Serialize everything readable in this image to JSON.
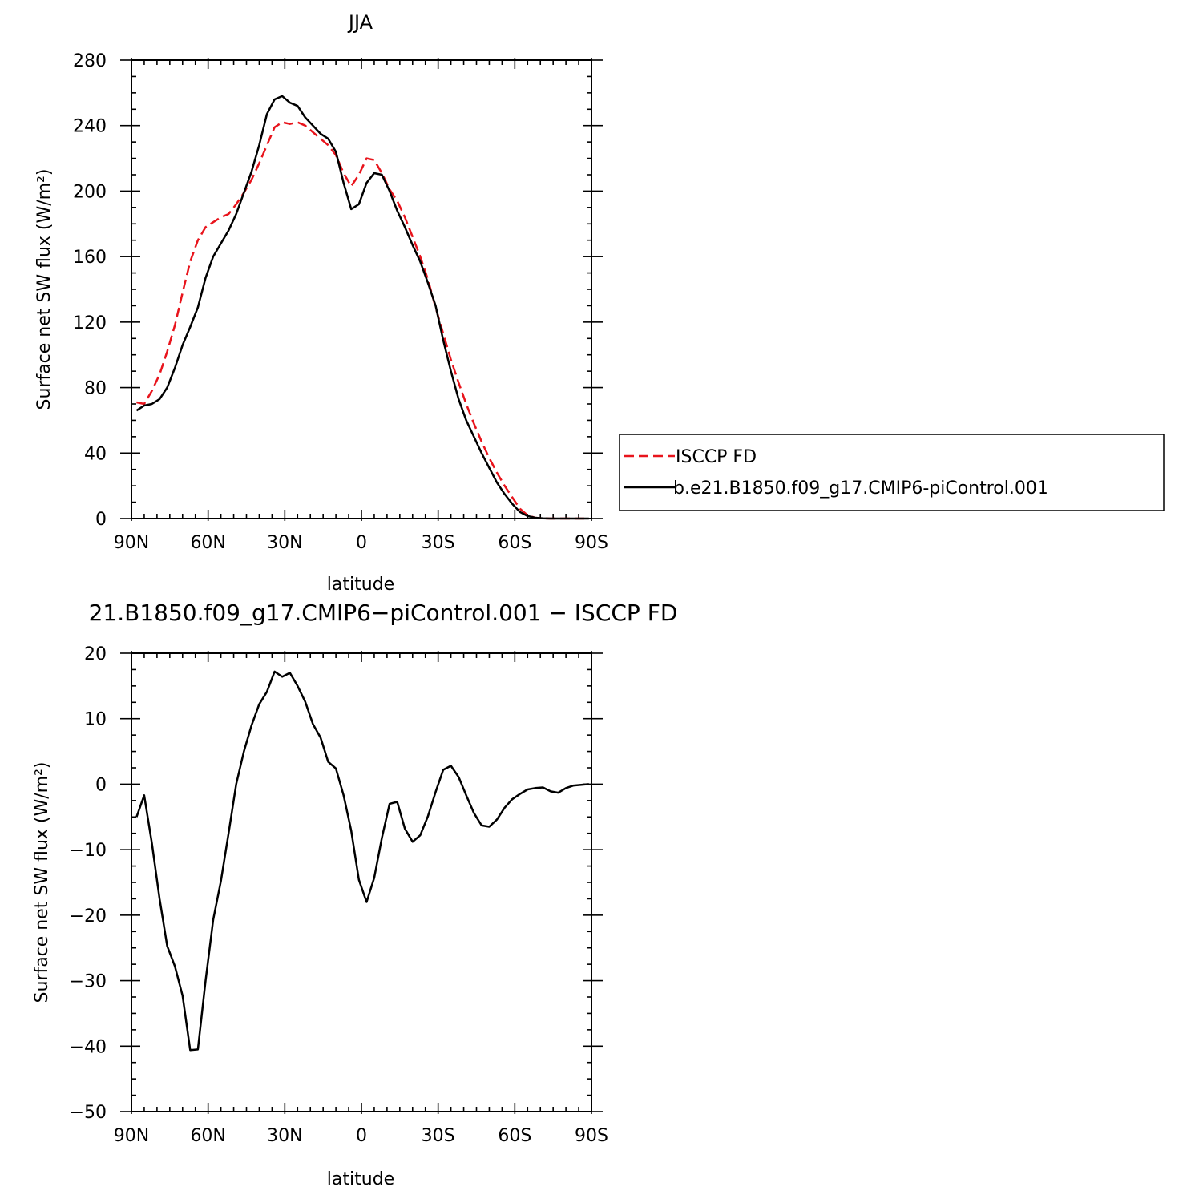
{
  "chart_data": [
    {
      "type": "line",
      "title": "JJA",
      "xlabel": "latitude",
      "ylabel": "Surface net SW flux (W/m²)",
      "xlim": [
        90,
        -90
      ],
      "ylim": [
        0,
        280
      ],
      "x_ticks": [
        90,
        60,
        30,
        0,
        -30,
        -60,
        -90
      ],
      "x_tick_labels": [
        "90N",
        "60N",
        "30N",
        "0",
        "30S",
        "60S",
        "90S"
      ],
      "y_ticks": [
        0,
        40,
        80,
        120,
        160,
        200,
        240,
        280
      ],
      "y_tick_labels": [
        "0",
        "40",
        "80",
        "120",
        "160",
        "200",
        "240",
        "280"
      ],
      "legend_position": "right",
      "series": [
        {
          "name": "ISCCP FD",
          "color": "#e8141c",
          "dash": "dashed",
          "x": [
            88,
            85,
            82,
            79,
            76,
            73,
            70,
            67,
            64,
            61,
            58,
            55,
            52,
            49,
            46,
            43,
            40,
            37,
            34,
            31,
            28,
            25,
            22,
            19,
            16,
            13,
            10,
            7,
            4,
            1,
            -2,
            -5,
            -8,
            -11,
            -14,
            -17,
            -20,
            -23,
            -26,
            -29,
            -32,
            -35,
            -38,
            -41,
            -44,
            -47,
            -50,
            -53,
            -56,
            -59,
            -62,
            -65,
            -68,
            -71,
            -74,
            -77,
            -80,
            -83,
            -86,
            -89
          ],
          "y": [
            71,
            70,
            78,
            88,
            102,
            118,
            138,
            157,
            170,
            178,
            181,
            184,
            186,
            192,
            199,
            207,
            217,
            228,
            239,
            242,
            241,
            242,
            240,
            236,
            232,
            228,
            222,
            211,
            203,
            210,
            220,
            219,
            211,
            201,
            194,
            184,
            172,
            160,
            146,
            129,
            113,
            97,
            83,
            70,
            58,
            47,
            37,
            28,
            20,
            13,
            6,
            2,
            0.5,
            0.1,
            0,
            0,
            0,
            0,
            0,
            0
          ]
        },
        {
          "name": "b.e21.B1850.f09_g17.CMIP6-piControl.001",
          "color": "#000000",
          "dash": "solid",
          "x": [
            88,
            85,
            82,
            79,
            76,
            73,
            70,
            67,
            64,
            61,
            58,
            55,
            52,
            49,
            46,
            43,
            40,
            37,
            34,
            31,
            28,
            25,
            22,
            19,
            16,
            13,
            10,
            7,
            4,
            1,
            -2,
            -5,
            -8,
            -11,
            -14,
            -17,
            -20,
            -23,
            -26,
            -29,
            -32,
            -35,
            -38,
            -41,
            -44,
            -47,
            -50,
            -53,
            -56,
            -59,
            -62,
            -65,
            -68,
            -71,
            -74,
            -77,
            -80,
            -83,
            -86,
            -89
          ],
          "y": [
            66,
            69,
            70,
            73,
            80,
            92,
            106,
            117,
            129,
            147,
            160,
            168,
            176,
            186,
            199,
            212,
            228,
            247,
            256,
            258,
            254,
            252,
            245,
            240,
            235,
            232,
            224,
            205,
            189,
            192,
            205,
            211,
            210,
            200,
            188,
            178,
            167,
            157,
            144,
            130,
            109,
            90,
            73,
            60,
            50,
            40,
            31,
            22,
            15,
            9,
            4,
            1.5,
            0.5,
            0.1,
            0,
            0,
            0,
            0,
            0,
            0
          ]
        }
      ]
    },
    {
      "type": "line",
      "title": "21.B1850.f09_g17.CMIP6−piControl.001 − ISCCP FD",
      "xlabel": "latitude",
      "ylabel": "Surface net SW flux (W/m²)",
      "xlim": [
        90,
        -90
      ],
      "ylim": [
        -50,
        20
      ],
      "x_ticks": [
        90,
        60,
        30,
        0,
        -30,
        -60,
        -90
      ],
      "x_tick_labels": [
        "90N",
        "60N",
        "30N",
        "0",
        "30S",
        "60S",
        "90S"
      ],
      "y_ticks": [
        -50,
        -40,
        -30,
        -20,
        -10,
        0,
        10,
        20
      ],
      "y_tick_labels": [
        "−50",
        "−40",
        "−30",
        "−20",
        "−10",
        "0",
        "10",
        "20"
      ],
      "series": [
        {
          "color": "#000000",
          "dash": "solid",
          "x": [
            88,
            85,
            82,
            79,
            76,
            73,
            70,
            67,
            64,
            61,
            58,
            55,
            52,
            49,
            46,
            43,
            40,
            37,
            34,
            31,
            28,
            25,
            22,
            19,
            16,
            13,
            10,
            7,
            4,
            1,
            -2,
            -5,
            -8,
            -11,
            -14,
            -17,
            -20,
            -23,
            -26,
            -29,
            -32,
            -35,
            -38,
            -41,
            -44,
            -47,
            -50,
            -53,
            -56,
            -59,
            -62,
            -65,
            -68,
            -71,
            -74,
            -77,
            -80,
            -83,
            -86,
            -89
          ],
          "y": [
            -5,
            -1.7,
            -9,
            -17.5,
            -24.7,
            -27.8,
            -32.3,
            -40.6,
            -40.5,
            -30,
            -20.7,
            -14.8,
            -7.5,
            0,
            5,
            9,
            12.2,
            14.1,
            17.2,
            16.4,
            17,
            15,
            12.6,
            9.2,
            7.1,
            3.4,
            2.4,
            -1.7,
            -7.1,
            -14.6,
            -18,
            -14.3,
            -8.2,
            -3,
            -2.7,
            -6.8,
            -8.8,
            -7.8,
            -4.9,
            -1.2,
            2.2,
            2.8,
            1.1,
            -1.7,
            -4.4,
            -6.3,
            -6.5,
            -5.4,
            -3.6,
            -2.3,
            -1.5,
            -0.8,
            -0.6,
            -0.5,
            -1.1,
            -1.3,
            -0.6,
            -0.2,
            -0.1,
            0
          ]
        }
      ]
    }
  ]
}
